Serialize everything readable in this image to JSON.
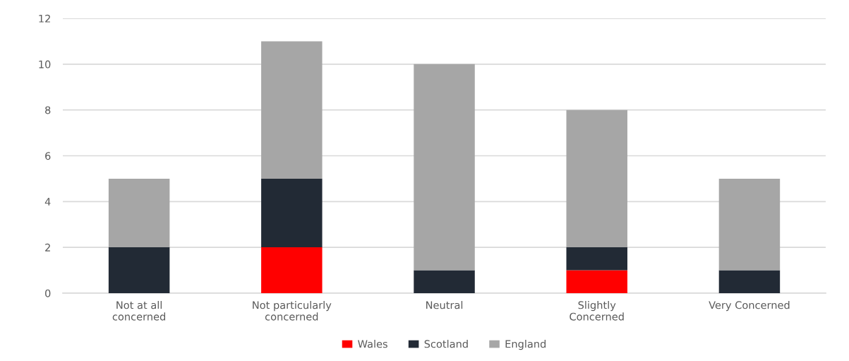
{
  "chart_data": {
    "type": "bar",
    "stacked": true,
    "categories": [
      "Not at all\nconcerned",
      "Not particularly\nconcerned",
      "Neutral",
      "Slightly\nConcerned",
      "Very Concerned"
    ],
    "series": [
      {
        "name": "Wales",
        "color": "#ff0000",
        "values": [
          0,
          2,
          0,
          1,
          0
        ]
      },
      {
        "name": "Scotland",
        "color": "#222a35",
        "values": [
          2,
          3,
          1,
          1,
          1
        ]
      },
      {
        "name": "England",
        "color": "#a6a6a6",
        "values": [
          3,
          6,
          9,
          6,
          4
        ]
      }
    ],
    "ylim": [
      0,
      12
    ],
    "yticks": [
      0,
      2,
      4,
      6,
      8,
      10,
      12
    ],
    "grid": "y",
    "legend": "bottom"
  }
}
